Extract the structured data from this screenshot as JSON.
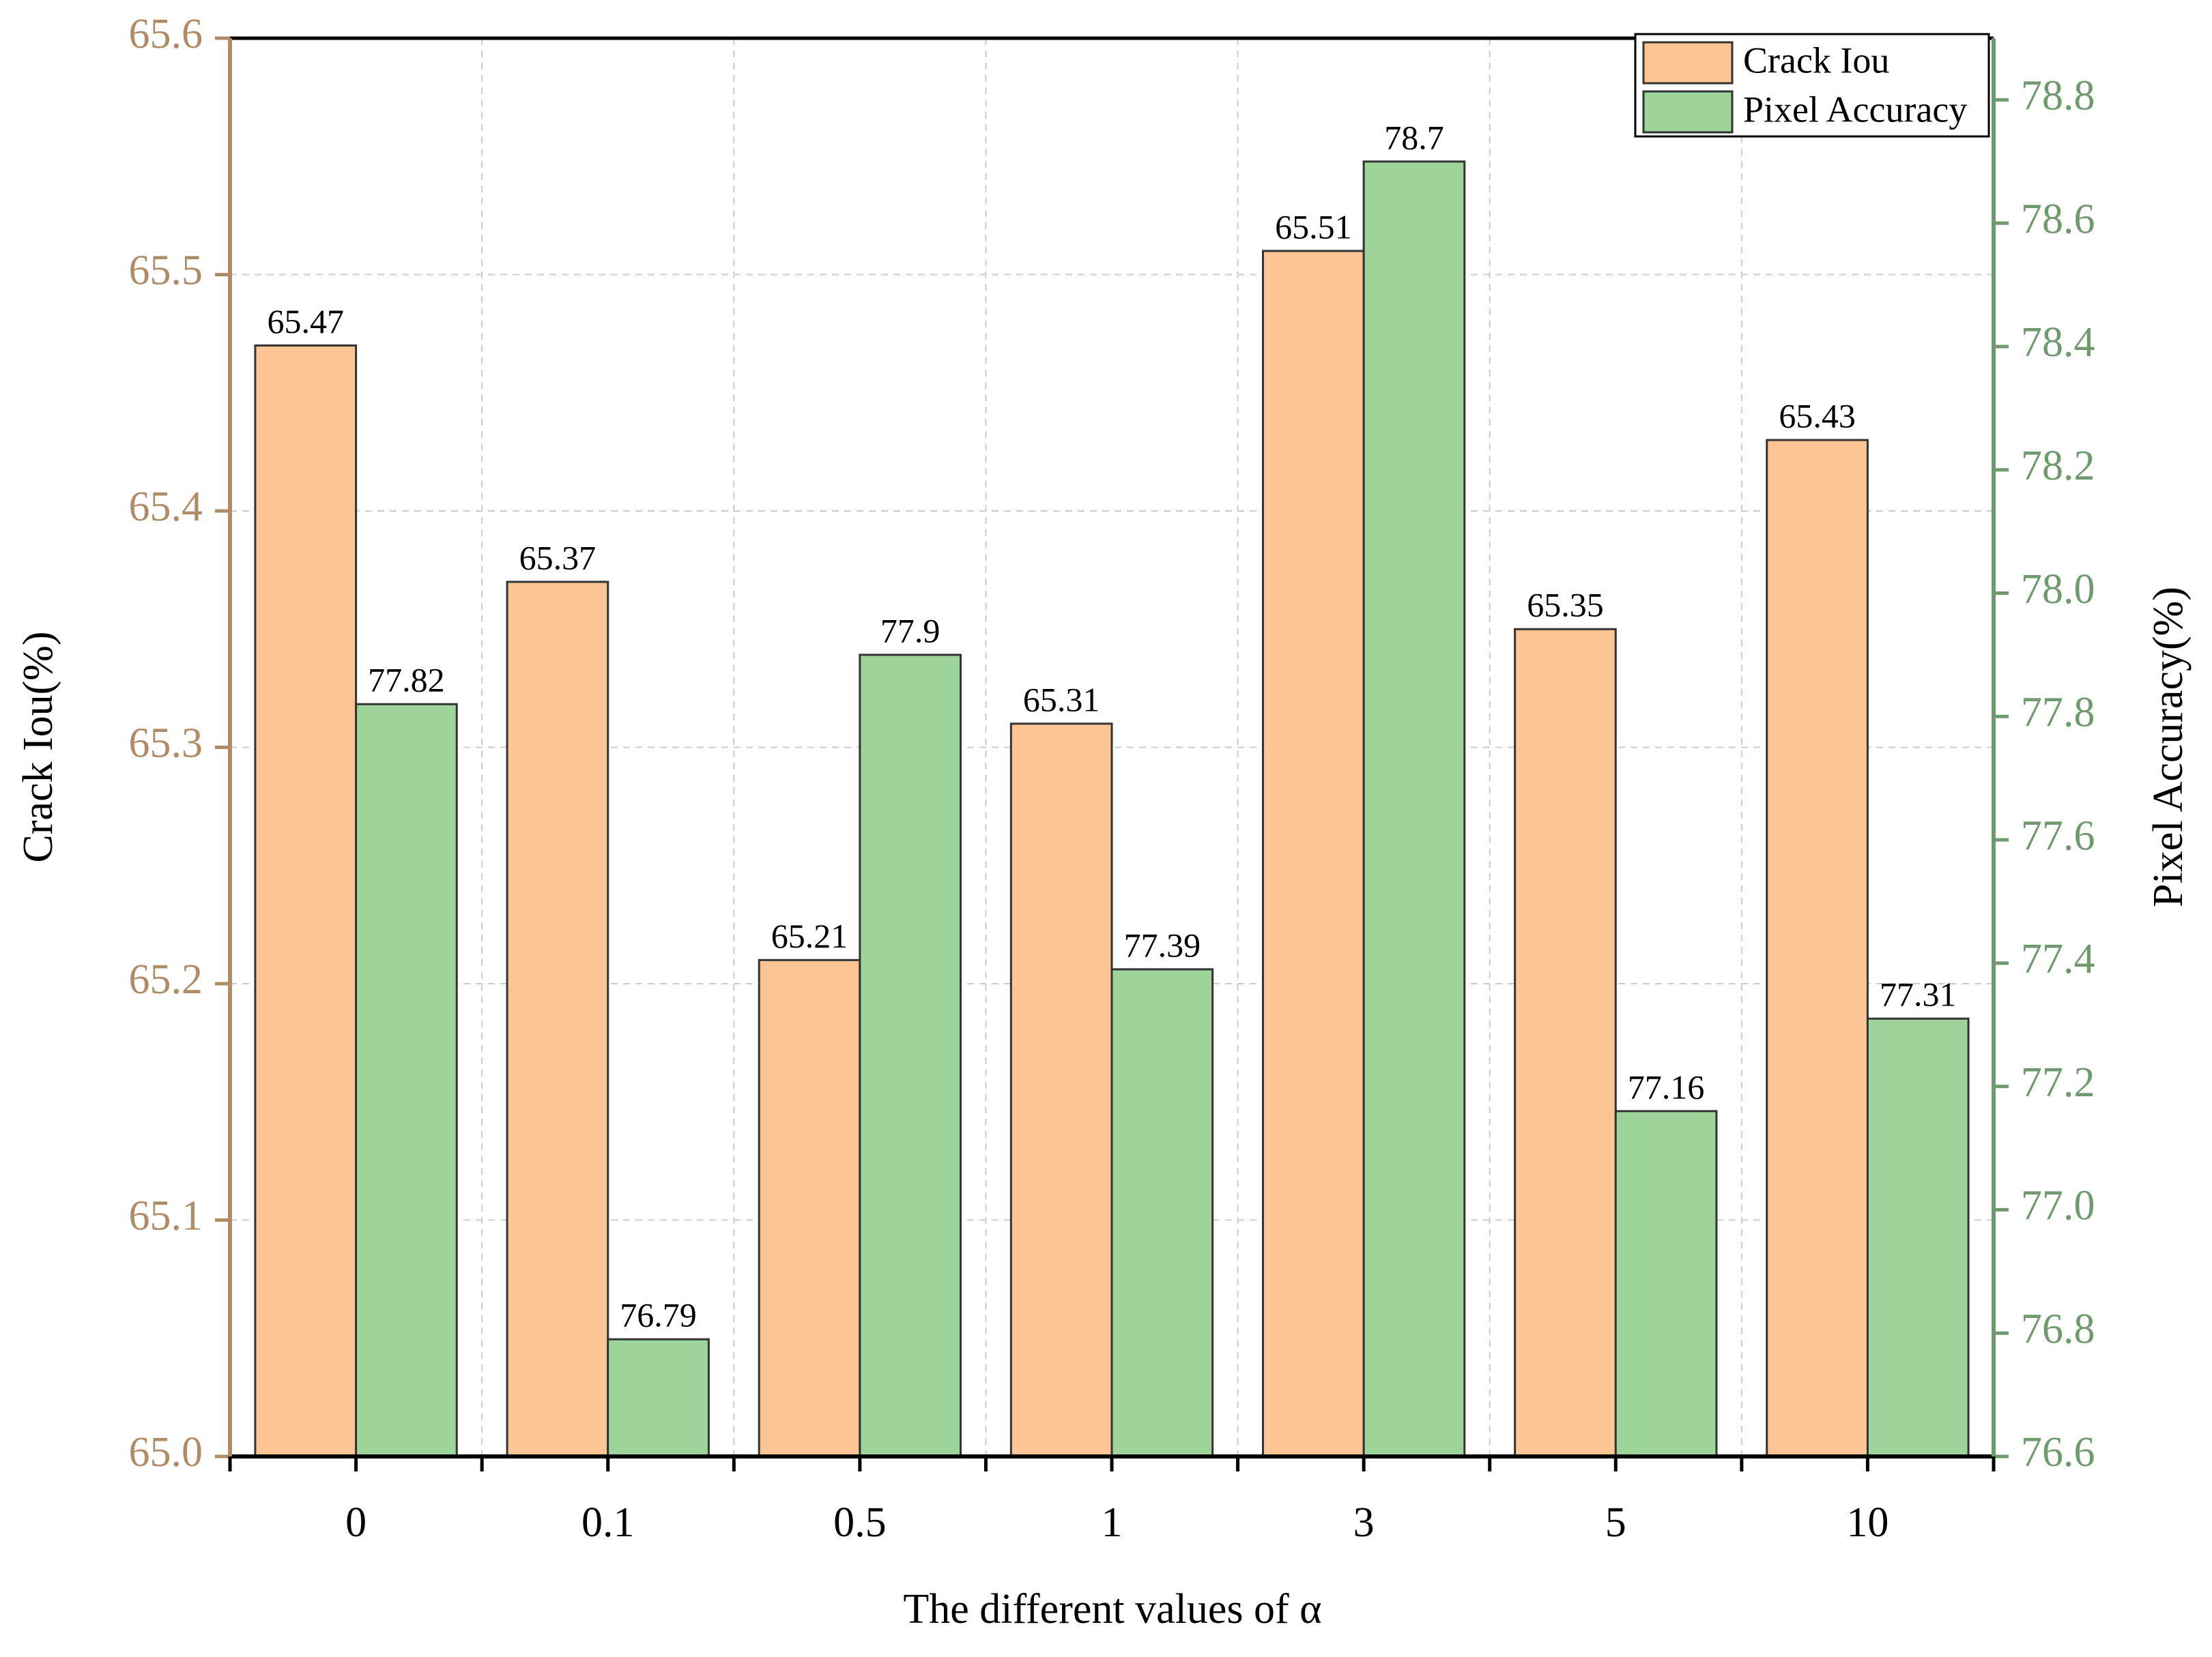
{
  "chart_data": {
    "type": "bar",
    "x_label": "The different values of α",
    "y_label": "Crack Iou(%)",
    "y2_label": "Pixel Accuracy(%)",
    "categories": [
      "0",
      "0.1",
      "0.5",
      "1",
      "3",
      "5",
      "10"
    ],
    "series": [
      {
        "name": "Crack Iou",
        "color": "#fdc594",
        "values": [
          65.47,
          65.37,
          65.21,
          65.31,
          65.51,
          65.35,
          65.43
        ]
      },
      {
        "name": "Pixel Accuracy",
        "color": "#9dd49a",
        "axis": "y2",
        "values": [
          77.82,
          76.79,
          77.9,
          77.39,
          78.7,
          77.16,
          77.31
        ]
      }
    ],
    "ylim": [
      65.0,
      65.6
    ],
    "yticks": [
      {
        "value": 65,
        "label": "65.0"
      },
      65.1,
      65.2,
      65.3,
      65.4,
      65.5,
      65.6
    ],
    "y2lim": [
      76.6,
      78.9
    ],
    "y2ticks": [
      76.6,
      76.8,
      {
        "value": 77,
        "label": "77.0"
      },
      77.2,
      77.4,
      77.6,
      77.8,
      {
        "value": 78,
        "label": "78.0"
      },
      78.2,
      78.4,
      78.6,
      78.8
    ],
    "y_color": "#b08c66",
    "y2_color": "#6e9a6e",
    "grid": true,
    "legend": "upper right"
  }
}
